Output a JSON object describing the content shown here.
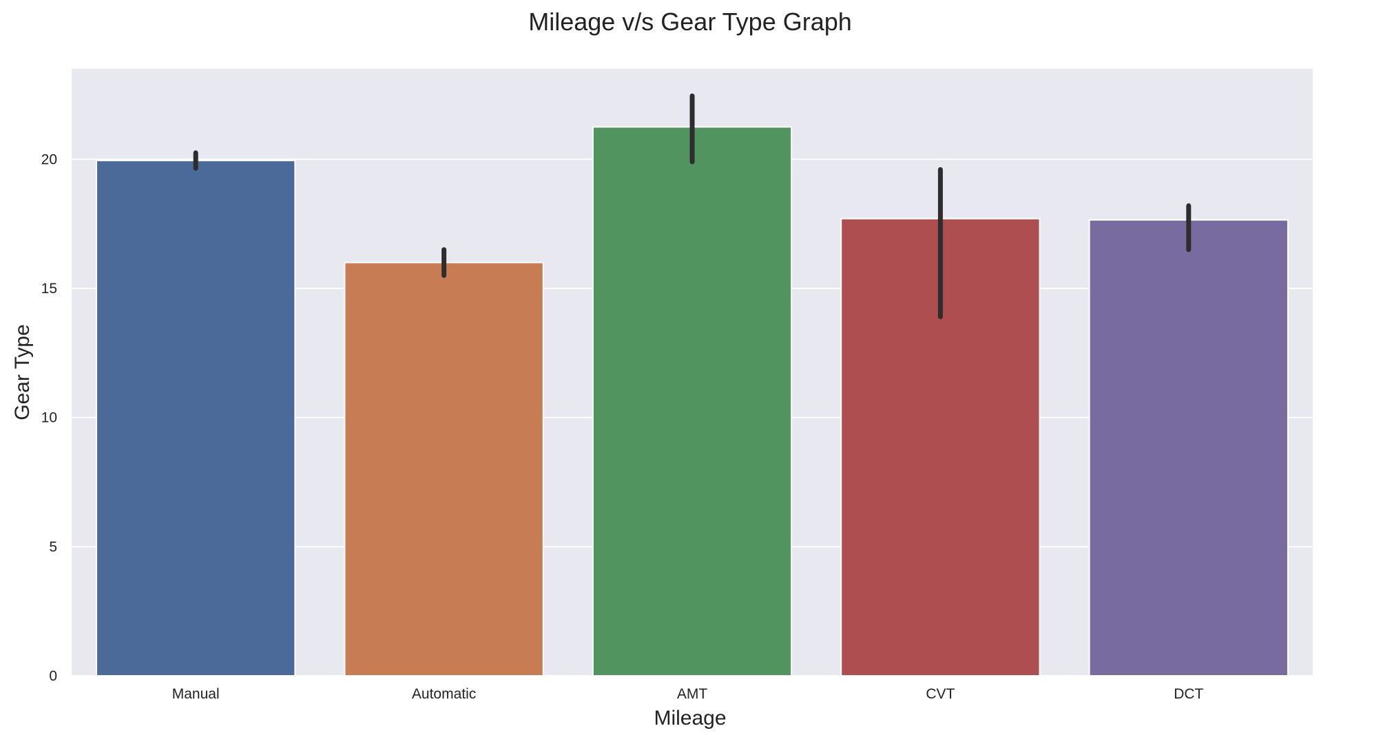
{
  "chart_data": {
    "type": "bar",
    "title": "Mileage v/s Gear Type Graph",
    "xlabel": "Mileage",
    "ylabel": "Gear Type",
    "categories": [
      "Manual",
      "Automatic",
      "AMT",
      "CVT",
      "DCT"
    ],
    "values": [
      19.95,
      16.0,
      21.25,
      17.7,
      17.65
    ],
    "error_bars": [
      {
        "low": 19.65,
        "high": 20.25
      },
      {
        "low": 15.5,
        "high": 16.5
      },
      {
        "low": 19.9,
        "high": 22.45
      },
      {
        "low": 13.9,
        "high": 19.6
      },
      {
        "low": 16.5,
        "high": 18.2
      }
    ],
    "ylim": [
      0,
      23.5
    ],
    "yticks": [
      0,
      5,
      10,
      15,
      20
    ],
    "grid": true,
    "colors": [
      "#4c6a99",
      "#c77c53",
      "#529460",
      "#ae4e50",
      "#786b9f"
    ],
    "background": "#e8e8f0",
    "errorbar_color": "#2d2d2d"
  }
}
